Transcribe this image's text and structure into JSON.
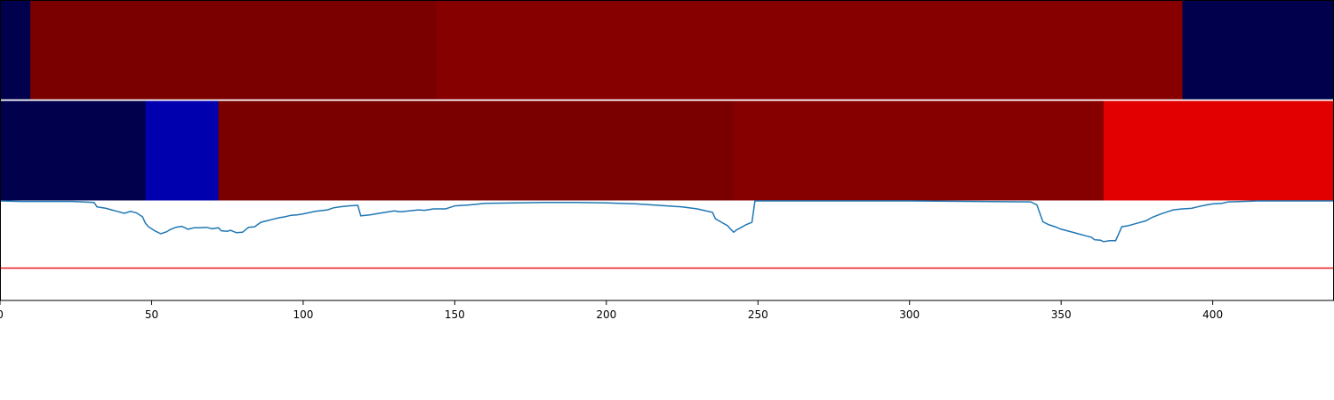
{
  "chart_data": [
    {
      "type": "heatmap",
      "colormap": "seismic",
      "segments": [
        {
          "start": 0,
          "end": 10,
          "color": "#00004c"
        },
        {
          "start": 10,
          "end": 144,
          "color": "#7a0000"
        },
        {
          "start": 144,
          "end": 390,
          "color": "#870000"
        },
        {
          "start": 390,
          "end": 440,
          "color": "#00004c"
        }
      ]
    },
    {
      "type": "heatmap",
      "colormap": "seismic",
      "segments": [
        {
          "start": 0,
          "end": 48,
          "color": "#00004c"
        },
        {
          "start": 48,
          "end": 72,
          "color": "#0000ae"
        },
        {
          "start": 72,
          "end": 242,
          "color": "#7a0000"
        },
        {
          "start": 242,
          "end": 364,
          "color": "#870000"
        },
        {
          "start": 364,
          "end": 440,
          "color": "#e30000"
        }
      ]
    },
    {
      "type": "line",
      "xlim": [
        0,
        440
      ],
      "ylim": [
        -1.0,
        1.0
      ],
      "threshold": -0.35,
      "threshold_color": "#e41a1c",
      "line_color": "#1f77b4",
      "xticks": [
        0,
        50,
        100,
        150,
        200,
        250,
        300,
        350,
        400
      ],
      "x": [
        0,
        7,
        15,
        24,
        31,
        32,
        35,
        38,
        41,
        43,
        45,
        47,
        48,
        49,
        51,
        53,
        55,
        56,
        58,
        60,
        62,
        64,
        66,
        68,
        70,
        72,
        73,
        75,
        76,
        78,
        80,
        82,
        84,
        86,
        88,
        90,
        92,
        94,
        96,
        98,
        100,
        104,
        108,
        110,
        112,
        115,
        118,
        119,
        122,
        125,
        130,
        132,
        135,
        138,
        140,
        143,
        147,
        150,
        155,
        160,
        170,
        180,
        190,
        200,
        210,
        215,
        220,
        225,
        230,
        235,
        236,
        238,
        240,
        241,
        242,
        243,
        244,
        246,
        248,
        249,
        254,
        270,
        300,
        340,
        342,
        344,
        346,
        348,
        350,
        352,
        355,
        358,
        360,
        361,
        363,
        364,
        366,
        368,
        370,
        372,
        375,
        378,
        380,
        383,
        385,
        387,
        390,
        393,
        395,
        398,
        400,
        403,
        405,
        410,
        415,
        420,
        440
      ],
      "y": [
        1.0,
        0.99,
        0.99,
        0.99,
        0.97,
        0.88,
        0.85,
        0.8,
        0.75,
        0.79,
        0.76,
        0.68,
        0.55,
        0.48,
        0.4,
        0.34,
        0.38,
        0.42,
        0.47,
        0.49,
        0.43,
        0.46,
        0.46,
        0.47,
        0.44,
        0.46,
        0.4,
        0.39,
        0.41,
        0.36,
        0.37,
        0.47,
        0.48,
        0.57,
        0.6,
        0.63,
        0.66,
        0.68,
        0.71,
        0.72,
        0.74,
        0.79,
        0.82,
        0.86,
        0.88,
        0.9,
        0.91,
        0.7,
        0.72,
        0.75,
        0.8,
        0.78,
        0.8,
        0.82,
        0.81,
        0.84,
        0.84,
        0.9,
        0.92,
        0.95,
        0.96,
        0.97,
        0.97,
        0.96,
        0.94,
        0.92,
        0.9,
        0.88,
        0.84,
        0.77,
        0.64,
        0.57,
        0.5,
        0.43,
        0.37,
        0.42,
        0.45,
        0.52,
        0.57,
        1.0,
        1.0,
        1.0,
        1.0,
        0.98,
        0.92,
        0.58,
        0.52,
        0.48,
        0.43,
        0.4,
        0.35,
        0.3,
        0.27,
        0.22,
        0.21,
        0.18,
        0.2,
        0.2,
        0.48,
        0.5,
        0.55,
        0.6,
        0.67,
        0.74,
        0.78,
        0.82,
        0.84,
        0.85,
        0.88,
        0.92,
        0.94,
        0.95,
        0.98,
        0.99,
        1.0,
        1.0,
        1.0
      ]
    }
  ]
}
